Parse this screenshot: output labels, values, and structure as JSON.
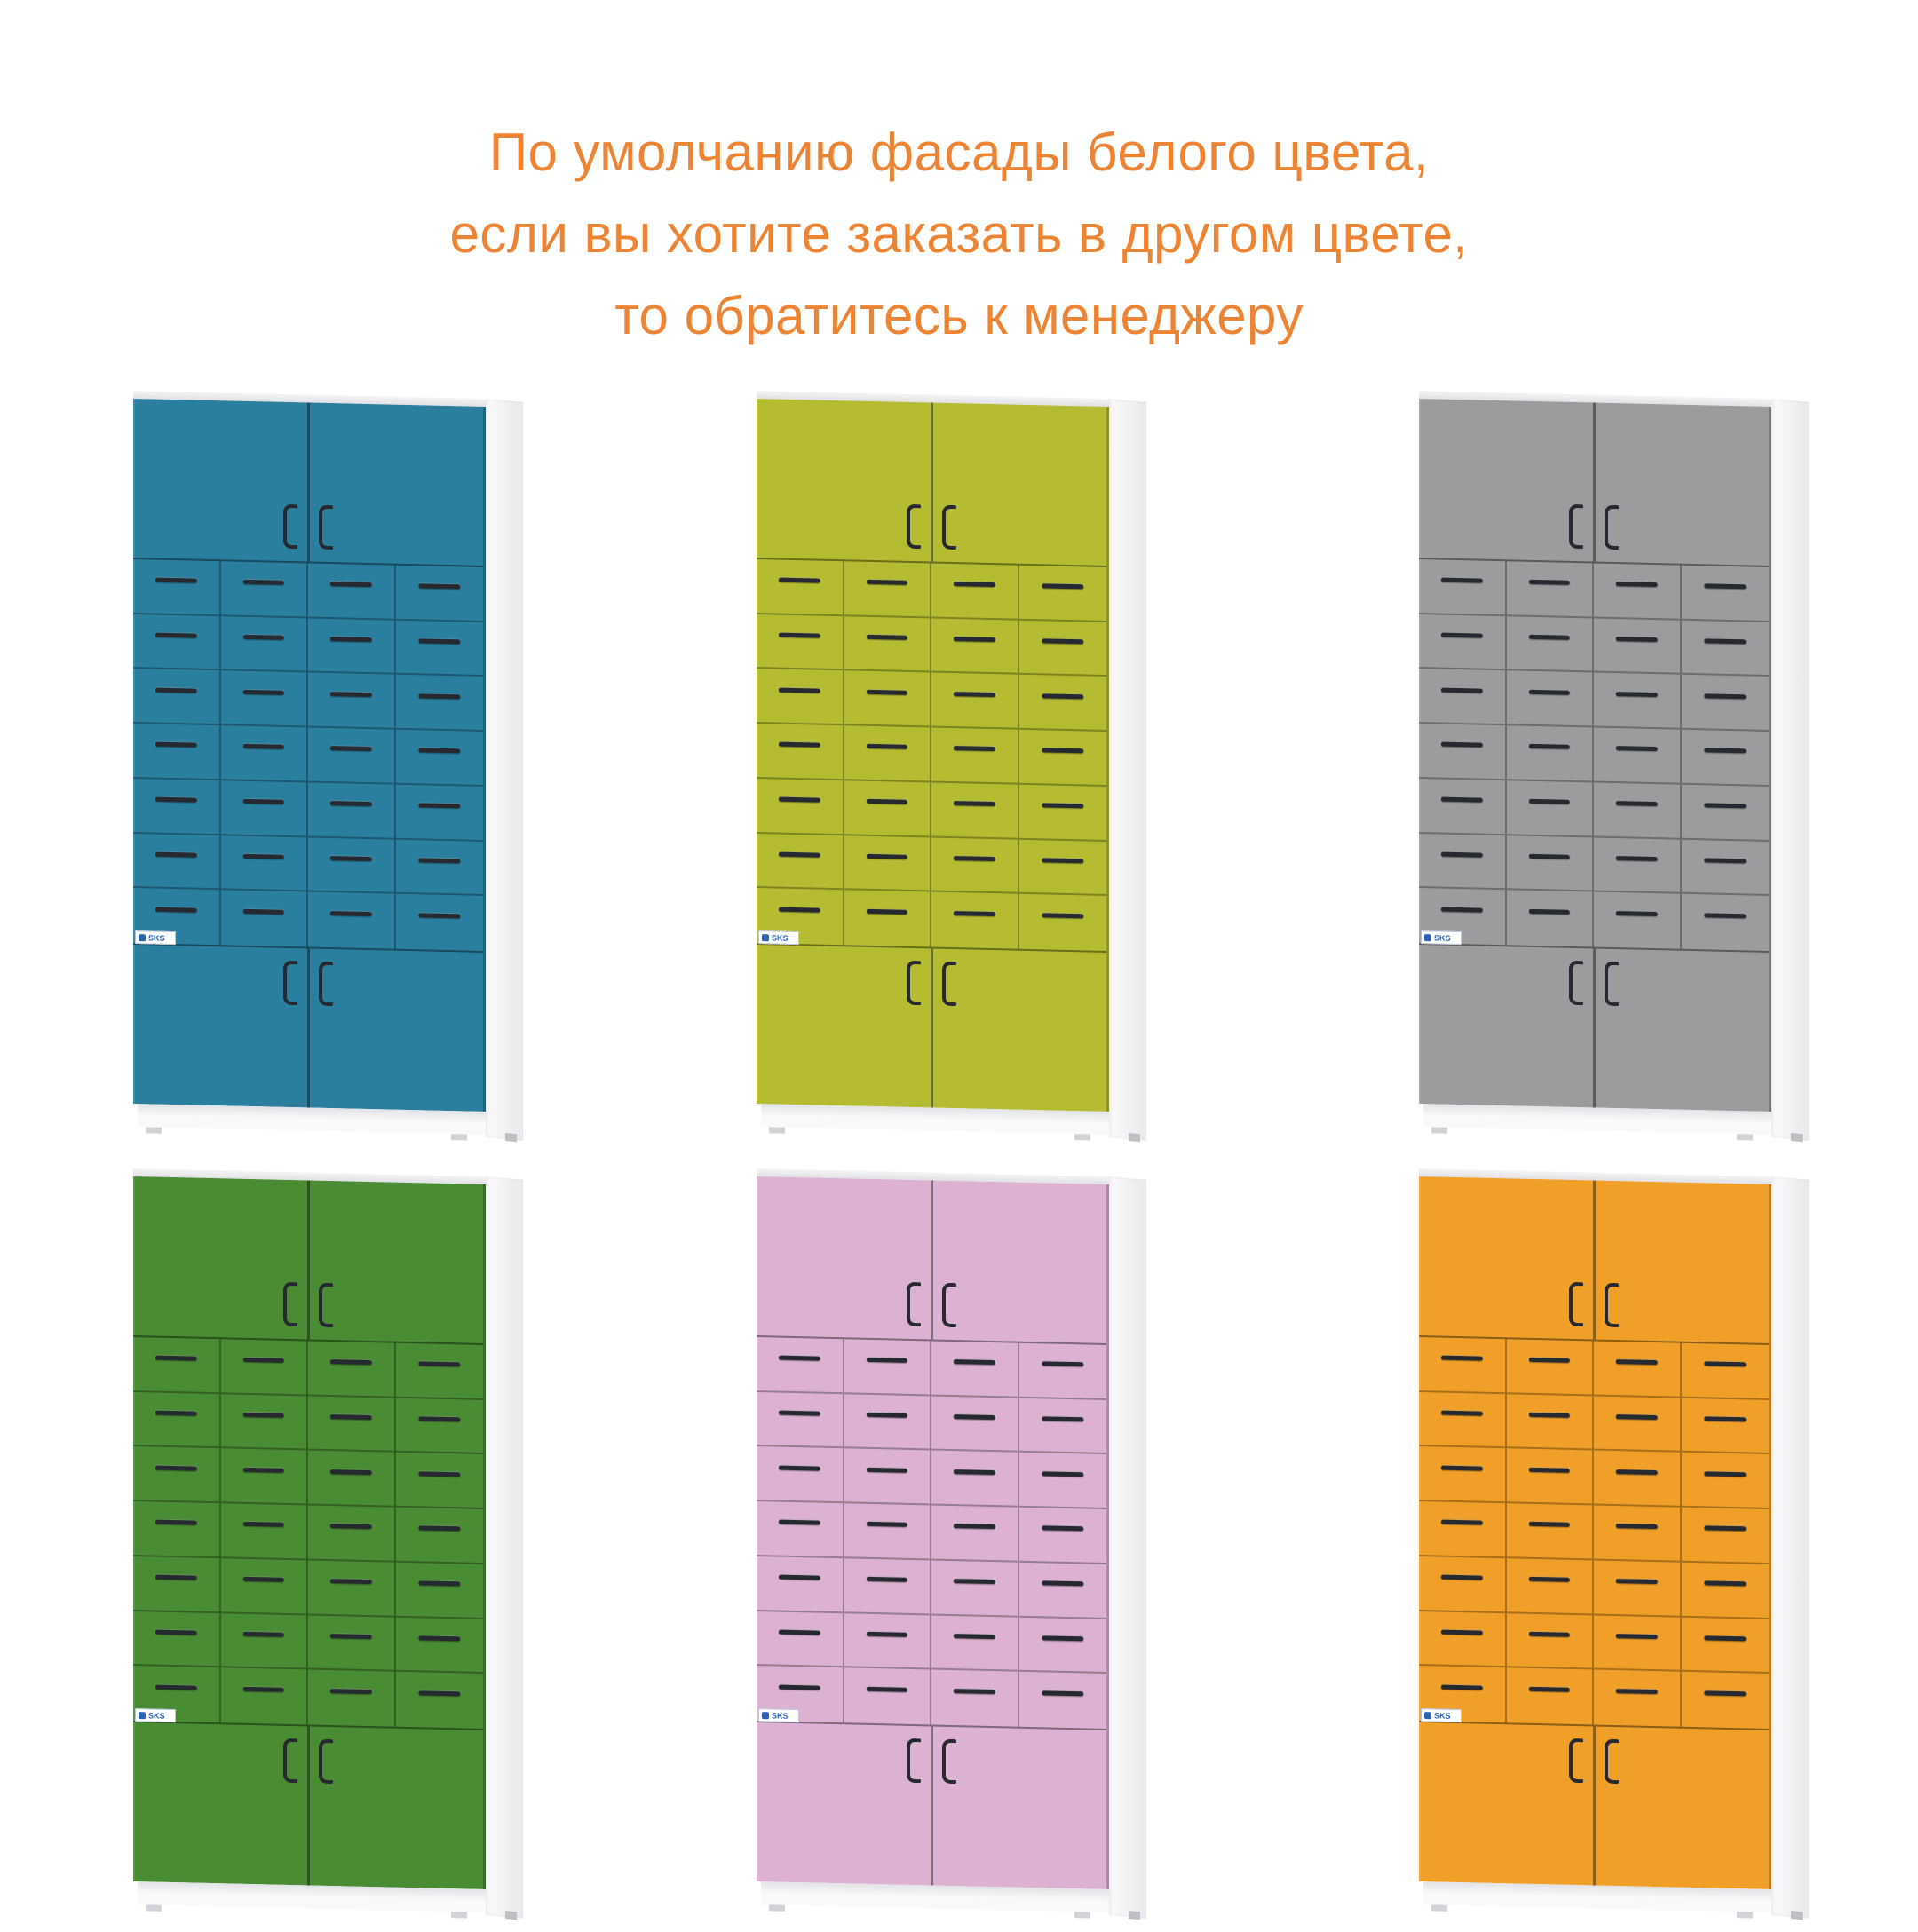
{
  "title": {
    "lines": [
      "По умолчанию фасады белого цвета,",
      "если вы хотите заказать в другом цвете,",
      "то обратитесь к менеджеру"
    ],
    "color": "#ed8434"
  },
  "brand_label": "SKS",
  "colors": {
    "handle": "#262a30",
    "carcass_white": "#f2f2f5",
    "brand_blue": "#2d62b0"
  },
  "cabinet_structure": {
    "top_doors": 2,
    "bottom_doors": 2,
    "drawer_rows": 7,
    "drawer_columns": 4,
    "drawer_count": 28
  },
  "cabinets": [
    {
      "id": "teal",
      "color": "#2a7f9f"
    },
    {
      "id": "olive",
      "color": "#b5bc31"
    },
    {
      "id": "gray",
      "color": "#9c9c9e"
    },
    {
      "id": "green",
      "color": "#4a8c33"
    },
    {
      "id": "pink",
      "color": "#dcb1d2"
    },
    {
      "id": "orange",
      "color": "#f0a028"
    }
  ]
}
